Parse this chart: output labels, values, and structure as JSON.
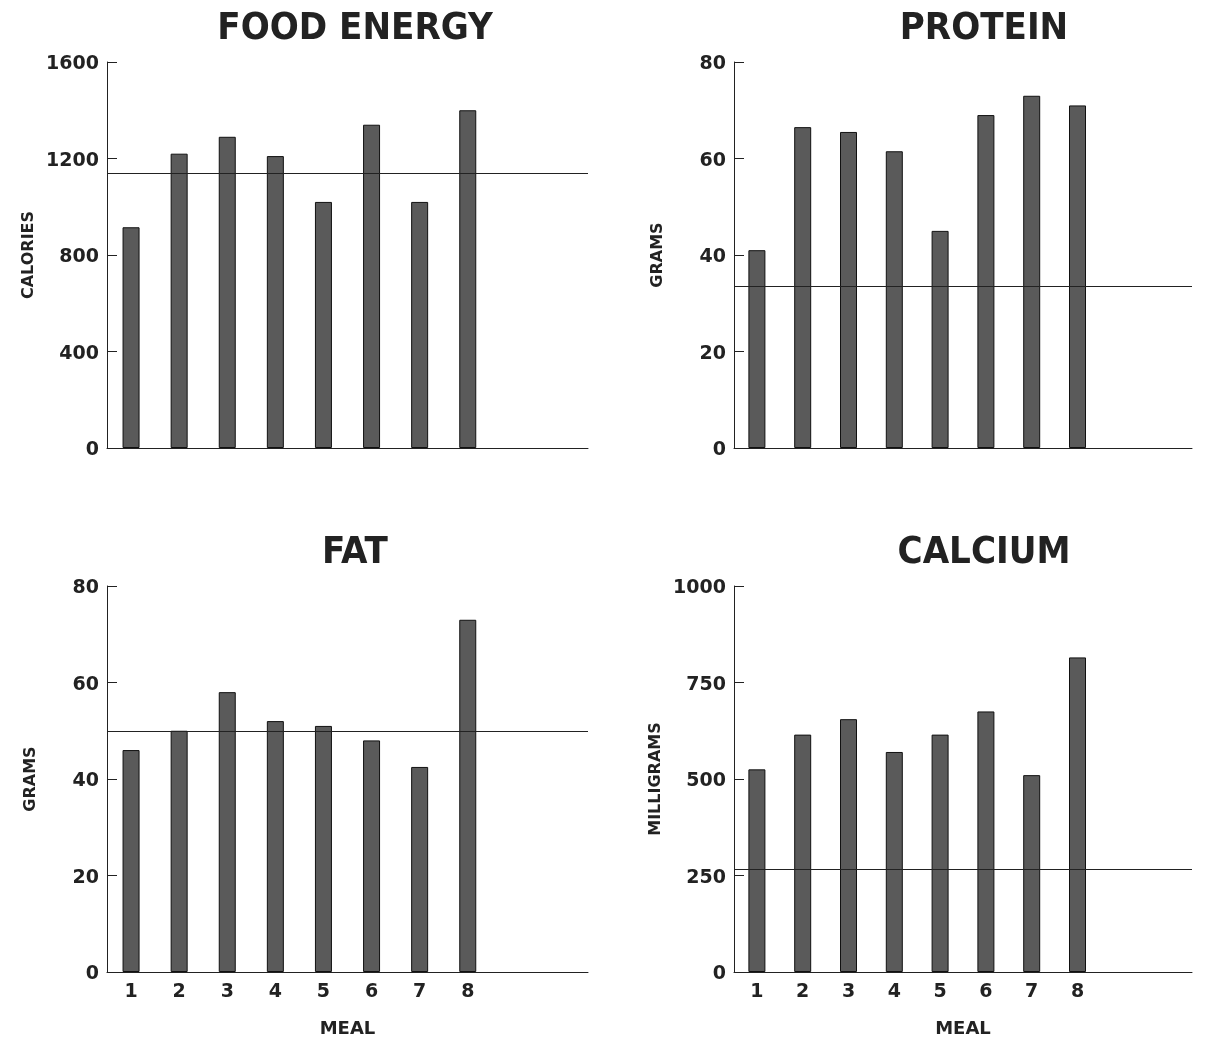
{
  "chart_data": [
    {
      "type": "bar",
      "title": "FOOD ENERGY",
      "ylabel": "CALORIES",
      "categories": [
        "1",
        "2",
        "3",
        "4",
        "5",
        "6",
        "7",
        "8",
        null,
        null
      ],
      "values": [
        915,
        1220,
        1290,
        1210,
        1020,
        1340,
        1020,
        1400,
        null,
        null
      ],
      "color": "#5a5a5a",
      "ylim": [
        0,
        1600
      ],
      "yticks": [
        0,
        400,
        800,
        1200,
        1600
      ],
      "tick_labels": "y",
      "ref_lines": [
        {
          "axis": "y",
          "value": 1140,
          "color": "#222222"
        }
      ]
    },
    {
      "type": "bar",
      "title": "PROTEIN",
      "ylabel": "GRAMS",
      "categories": [
        "1",
        "2",
        "3",
        "4",
        "5",
        "6",
        "7",
        "8",
        null,
        null
      ],
      "values": [
        41,
        66.5,
        65.5,
        61.5,
        45,
        69,
        73,
        71,
        null,
        null
      ],
      "color": "#5a5a5a",
      "ylim": [
        0,
        80
      ],
      "yticks": [
        0,
        20,
        40,
        60,
        80
      ],
      "tick_labels": "y",
      "ref_lines": [
        {
          "axis": "y",
          "value": 33.5,
          "color": "#222222"
        }
      ]
    },
    {
      "type": "bar",
      "title": "FAT",
      "ylabel": "GRAMS",
      "xlabel": "MEAL",
      "categories": [
        "1",
        "2",
        "3",
        "4",
        "5",
        "6",
        "7",
        "8",
        null,
        null
      ],
      "values": [
        46,
        50,
        58,
        52,
        51,
        48,
        42.5,
        73,
        null,
        null
      ],
      "color": "#5a5a5a",
      "ylim": [
        0,
        80
      ],
      "yticks": [
        0,
        20,
        40,
        60,
        80
      ],
      "ref_lines": [
        {
          "axis": "y",
          "value": 50,
          "color": "#222222"
        }
      ]
    },
    {
      "type": "bar",
      "title": "CALCIUM",
      "ylabel": "MILLIGRAMS",
      "xlabel": "MEAL",
      "categories": [
        "1",
        "2",
        "3",
        "4",
        "5",
        "6",
        "7",
        "8",
        null,
        null
      ],
      "values": [
        525,
        615,
        655,
        570,
        615,
        675,
        510,
        815,
        null,
        null
      ],
      "color": "#5a5a5a",
      "ylim": [
        0,
        1000
      ],
      "yticks": [
        0,
        250,
        500,
        750,
        1000
      ],
      "ref_lines": [
        {
          "axis": "y",
          "value": 265,
          "color": "#222222"
        }
      ]
    }
  ]
}
